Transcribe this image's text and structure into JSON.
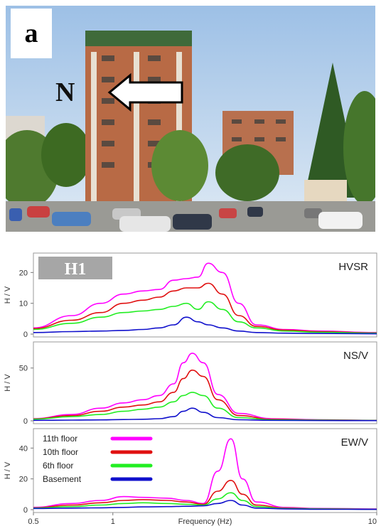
{
  "figure": {
    "panel_letter": "a",
    "north_label": "N"
  },
  "colors": {
    "11th floor": "#ff00ff",
    "10th floor": "#e01010",
    "6th floor": "#22ee22",
    "Basement": "#1010cc"
  },
  "chart_data": [
    {
      "type": "line",
      "title": "HVSR",
      "badge": "H1",
      "ylabel": "H / V",
      "xscale": "log",
      "xlim": [
        0.5,
        10
      ],
      "ylim": [
        0,
        24
      ],
      "yticks": [
        0,
        10,
        20
      ],
      "series": [
        {
          "name": "11th floor",
          "x": [
            0.5,
            0.7,
            0.9,
            1.1,
            1.3,
            1.5,
            1.7,
            1.9,
            2.1,
            2.3,
            2.6,
            3.0,
            3.5,
            4.5,
            6,
            10
          ],
          "y": [
            2,
            6,
            10,
            13,
            14,
            14.5,
            17.5,
            18,
            18.5,
            23,
            20,
            10,
            3,
            1.5,
            1,
            0.5
          ]
        },
        {
          "name": "10th floor",
          "x": [
            0.5,
            0.7,
            0.9,
            1.1,
            1.3,
            1.5,
            1.7,
            1.9,
            2.1,
            2.3,
            2.6,
            3.0,
            3.5,
            4.5,
            6,
            10
          ],
          "y": [
            1.8,
            4.5,
            7,
            10,
            11,
            12,
            14,
            15,
            15,
            16.5,
            13,
            6,
            2.5,
            1.3,
            0.8,
            0.4
          ]
        },
        {
          "name": "6th floor",
          "x": [
            0.5,
            0.7,
            0.9,
            1.1,
            1.3,
            1.5,
            1.7,
            1.9,
            2.1,
            2.3,
            2.6,
            3.0,
            3.5,
            4.5,
            6,
            10
          ],
          "y": [
            1.5,
            3.5,
            5.5,
            7,
            7.5,
            8,
            9,
            10,
            8,
            10.5,
            8,
            4,
            2,
            1,
            0.6,
            0.3
          ]
        },
        {
          "name": "Basement",
          "x": [
            0.5,
            0.7,
            0.9,
            1.1,
            1.3,
            1.5,
            1.7,
            1.9,
            2.1,
            2.3,
            2.6,
            3.0,
            3.5,
            4.5,
            6,
            10
          ],
          "y": [
            0.5,
            0.8,
            1,
            1.2,
            1.5,
            2,
            3,
            5.5,
            4,
            3,
            2,
            1,
            0.5,
            0.3,
            0.2,
            0.1
          ]
        }
      ]
    },
    {
      "type": "line",
      "title": "NS/V",
      "ylabel": "H / V",
      "xscale": "log",
      "xlim": [
        0.5,
        10
      ],
      "ylim": [
        0,
        68
      ],
      "yticks": [
        0,
        50
      ],
      "series": [
        {
          "name": "11th floor",
          "x": [
            0.5,
            0.7,
            0.9,
            1.1,
            1.3,
            1.5,
            1.7,
            1.85,
            2.0,
            2.2,
            2.5,
            3.0,
            4,
            6,
            10
          ],
          "y": [
            2,
            6,
            12,
            17,
            20,
            24,
            35,
            55,
            64,
            55,
            25,
            7,
            2,
            1,
            0.5
          ]
        },
        {
          "name": "10th floor",
          "x": [
            0.5,
            0.7,
            0.9,
            1.1,
            1.3,
            1.5,
            1.7,
            1.85,
            2.0,
            2.2,
            2.5,
            3.0,
            4,
            6,
            10
          ],
          "y": [
            1.8,
            5,
            9,
            13,
            15,
            18,
            27,
            40,
            48,
            42,
            20,
            5,
            1.5,
            0.8,
            0.4
          ]
        },
        {
          "name": "6th floor",
          "x": [
            0.5,
            0.7,
            0.9,
            1.1,
            1.3,
            1.5,
            1.7,
            1.85,
            2.0,
            2.2,
            2.5,
            3.0,
            4,
            6,
            10
          ],
          "y": [
            1.5,
            4,
            6,
            9,
            11,
            13,
            18,
            24,
            27,
            24,
            12,
            3,
            1,
            0.6,
            0.3
          ]
        },
        {
          "name": "Basement",
          "x": [
            0.5,
            0.7,
            0.9,
            1.1,
            1.3,
            1.5,
            1.7,
            1.85,
            2.0,
            2.2,
            2.5,
            3.0,
            4,
            6,
            10
          ],
          "y": [
            0.5,
            0.7,
            0.9,
            1.2,
            1.5,
            2,
            4,
            9,
            12,
            8,
            3,
            1,
            0.5,
            0.3,
            0.2
          ]
        }
      ]
    },
    {
      "type": "line",
      "title": "EW/V",
      "ylabel": "H / V",
      "xlabel": "Frequency (Hz)",
      "xscale": "log",
      "xlim": [
        0.5,
        10
      ],
      "ylim": [
        0,
        48
      ],
      "yticks": [
        0,
        20,
        40
      ],
      "xticks": [
        0.5,
        1,
        10
      ],
      "legend_position": "top-left",
      "series": [
        {
          "name": "11th floor",
          "x": [
            0.5,
            0.7,
            0.9,
            1.1,
            1.3,
            1.6,
            1.9,
            2.2,
            2.5,
            2.8,
            3.1,
            3.5,
            4.5,
            6,
            10
          ],
          "y": [
            1.5,
            4,
            6,
            8.5,
            8,
            7.5,
            6,
            4,
            25,
            46,
            20,
            5,
            1.5,
            0.8,
            0.5
          ]
        },
        {
          "name": "10th floor",
          "x": [
            0.5,
            0.7,
            0.9,
            1.1,
            1.3,
            1.6,
            1.9,
            2.2,
            2.5,
            2.8,
            3.1,
            3.5,
            4.5,
            6,
            10
          ],
          "y": [
            1.2,
            3,
            4.5,
            6,
            6.5,
            6,
            5,
            3.5,
            12,
            19,
            10,
            3,
            1,
            0.6,
            0.3
          ]
        },
        {
          "name": "6th floor",
          "x": [
            0.5,
            0.7,
            0.9,
            1.1,
            1.3,
            1.6,
            1.9,
            2.2,
            2.5,
            2.8,
            3.1,
            3.5,
            4.5,
            6,
            10
          ],
          "y": [
            1,
            2,
            3,
            4,
            4.5,
            4,
            3.5,
            3,
            7,
            11,
            6,
            2,
            0.8,
            0.5,
            0.3
          ]
        },
        {
          "name": "Basement",
          "x": [
            0.5,
            0.7,
            0.9,
            1.1,
            1.3,
            1.6,
            1.9,
            2.2,
            2.5,
            2.8,
            3.1,
            3.5,
            4.5,
            6,
            10
          ],
          "y": [
            0.8,
            1,
            1.2,
            1.5,
            1.8,
            2,
            2.2,
            2.5,
            4,
            6,
            3,
            1,
            0.5,
            0.3,
            0.2
          ]
        }
      ]
    }
  ]
}
